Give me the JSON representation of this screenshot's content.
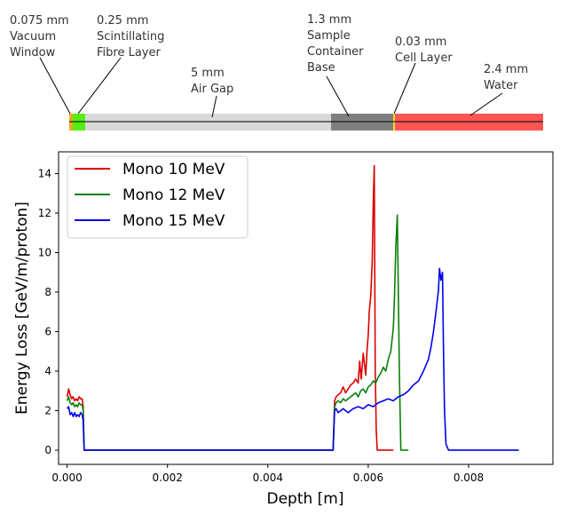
{
  "layer_diagram": {
    "layers": [
      {
        "name": "Vacuum Window",
        "thickness_label": "0.075 mm",
        "lines": [
          "0.075 mm",
          "Vacuum",
          "Window"
        ],
        "color": "#f5a623"
      },
      {
        "name": "Scintillating Fibre Layer",
        "thickness_label": "0.25 mm",
        "lines": [
          "0.25 mm",
          "Scintillating",
          "Fibre Layer"
        ],
        "color": "#55ee11"
      },
      {
        "name": "Air Gap",
        "thickness_label": "5 mm",
        "lines": [
          "5 mm",
          "Air Gap"
        ],
        "color": "#d9d9d9"
      },
      {
        "name": "Sample Container Base",
        "thickness_label": "1.3 mm",
        "lines": [
          "1.3 mm",
          "Sample",
          "Container",
          "Base"
        ],
        "color": "#7f7f7f"
      },
      {
        "name": "Cell Layer",
        "thickness_label": "0.03 mm",
        "lines": [
          "0.03 mm",
          "Cell Layer"
        ],
        "color": "#f2e01a"
      },
      {
        "name": "Water",
        "thickness_label": "2.4 mm",
        "lines": [
          "2.4 mm",
          "Water"
        ],
        "color": "#ff5555"
      }
    ]
  },
  "chart_data": {
    "type": "line",
    "title": "",
    "xlabel": "Depth [m]",
    "ylabel": "Energy Loss [GeV/m/proton]",
    "xlim": [
      -0.00017,
      0.00968
    ],
    "ylim": [
      -0.72,
      15.1
    ],
    "xticks": [
      0.0,
      0.002,
      0.004,
      0.006,
      0.008
    ],
    "xtick_labels": [
      "0.000",
      "0.002",
      "0.004",
      "0.006",
      "0.008"
    ],
    "yticks": [
      0,
      2,
      4,
      6,
      8,
      10,
      12,
      14
    ],
    "ytick_labels": [
      "0",
      "2",
      "4",
      "6",
      "8",
      "10",
      "12",
      "14"
    ],
    "legend_position": "top-left",
    "series": [
      {
        "name": "Mono 10 MeV",
        "color": "#dd0000",
        "x": [
          0.0,
          3e-05,
          6e-05,
          9e-05,
          0.00012,
          0.00015,
          0.00018,
          0.00021,
          0.00024,
          0.00027,
          0.0003,
          0.00032,
          0.00034,
          0.0004,
          0.0053,
          0.00533,
          0.00536,
          0.0054,
          0.00545,
          0.0055,
          0.00555,
          0.0056,
          0.00565,
          0.0057,
          0.00575,
          0.0058,
          0.00583,
          0.00586,
          0.0059,
          0.00595,
          0.00598,
          0.006,
          0.00602,
          0.00605,
          0.00608,
          0.0061,
          0.00612,
          0.00614,
          0.00616,
          0.00618,
          0.0062,
          0.0063,
          0.0065
        ],
        "y": [
          2.7,
          3.1,
          2.8,
          2.6,
          2.7,
          2.5,
          2.6,
          2.5,
          2.7,
          2.6,
          2.6,
          2.2,
          0.0,
          0.0,
          0.0,
          2.5,
          2.7,
          2.8,
          2.9,
          3.2,
          2.9,
          3.1,
          3.3,
          3.4,
          3.6,
          3.4,
          4.5,
          3.6,
          4.9,
          3.8,
          5.2,
          5.8,
          7.0,
          7.8,
          9.6,
          12.5,
          14.4,
          4.0,
          1.0,
          0.0,
          0.0,
          0.0,
          0.0
        ]
      },
      {
        "name": "Mono 12 MeV",
        "color": "#0a7f0a",
        "x": [
          0.0,
          3e-05,
          6e-05,
          9e-05,
          0.00012,
          0.00015,
          0.00018,
          0.00021,
          0.00024,
          0.00027,
          0.0003,
          0.00032,
          0.00034,
          0.0004,
          0.0053,
          0.00533,
          0.00536,
          0.0054,
          0.00545,
          0.0055,
          0.00555,
          0.0056,
          0.00565,
          0.0057,
          0.00575,
          0.0058,
          0.00585,
          0.0059,
          0.00595,
          0.006,
          0.00605,
          0.0061,
          0.00615,
          0.0062,
          0.00625,
          0.0063,
          0.00635,
          0.0064,
          0.00645,
          0.0065,
          0.00652,
          0.00655,
          0.00658,
          0.0066,
          0.00662,
          0.00665,
          0.0067,
          0.0068
        ],
        "y": [
          2.5,
          2.7,
          2.4,
          2.3,
          2.4,
          2.2,
          2.3,
          2.2,
          2.4,
          2.3,
          2.3,
          2.0,
          0.0,
          0.0,
          0.0,
          2.2,
          2.4,
          2.5,
          2.4,
          2.6,
          2.5,
          2.6,
          2.7,
          2.8,
          2.9,
          2.7,
          3.0,
          3.1,
          2.9,
          3.2,
          3.3,
          3.5,
          3.4,
          3.7,
          3.9,
          4.2,
          4.0,
          4.6,
          5.0,
          6.2,
          7.5,
          10.3,
          11.9,
          8.0,
          4.0,
          0.0,
          0.0,
          0.0
        ]
      },
      {
        "name": "Mono 15 MeV",
        "color": "#0000ee",
        "x": [
          0.0,
          3e-05,
          6e-05,
          9e-05,
          0.00012,
          0.00015,
          0.00018,
          0.00021,
          0.00024,
          0.00027,
          0.0003,
          0.00032,
          0.00034,
          0.0004,
          0.0053,
          0.00533,
          0.00536,
          0.0054,
          0.00545,
          0.0055,
          0.0056,
          0.0057,
          0.0058,
          0.0059,
          0.006,
          0.0061,
          0.0062,
          0.0063,
          0.0064,
          0.0065,
          0.0066,
          0.0067,
          0.0068,
          0.0069,
          0.007,
          0.0071,
          0.0072,
          0.00725,
          0.0073,
          0.00735,
          0.0074,
          0.00742,
          0.00745,
          0.00748,
          0.0075,
          0.00752,
          0.00755,
          0.0076,
          0.009
        ],
        "y": [
          2.1,
          2.2,
          1.8,
          1.9,
          1.7,
          1.9,
          1.7,
          1.8,
          1.7,
          1.9,
          1.8,
          1.5,
          0.0,
          0.0,
          0.0,
          2.0,
          2.1,
          1.9,
          2.0,
          2.1,
          1.9,
          2.1,
          2.2,
          2.1,
          2.3,
          2.2,
          2.4,
          2.5,
          2.6,
          2.5,
          2.7,
          2.8,
          3.0,
          3.3,
          3.5,
          4.0,
          4.6,
          5.2,
          6.0,
          7.0,
          8.1,
          9.2,
          8.6,
          9.0,
          5.0,
          2.0,
          0.3,
          0.0,
          0.0
        ]
      }
    ]
  }
}
